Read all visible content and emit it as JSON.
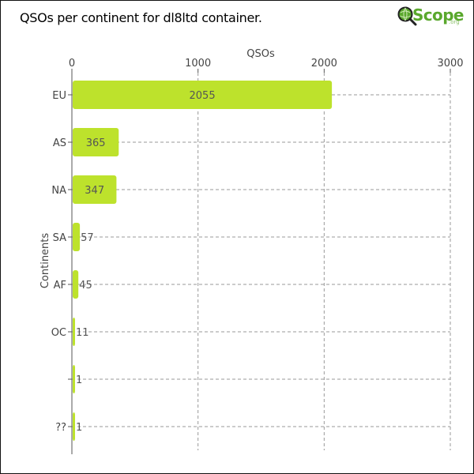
{
  "header": {
    "title": "QSOs per continent for dl8ltd container."
  },
  "logo": {
    "text": "Scope",
    "suffix": ".org",
    "icon": "magnifier-globe-icon",
    "color": "#5aa82d"
  },
  "chart_data": {
    "type": "bar",
    "orientation": "horizontal",
    "title": "QSOs per continent for dl8ltd container.",
    "xlabel": "QSOs",
    "ylabel": "Continents",
    "x_axis_position": "top",
    "xlim": [
      0,
      3000
    ],
    "xticks": [
      "0",
      "1000",
      "2000",
      "3000"
    ],
    "grid": true,
    "bar_color": "#bde22c",
    "categories": [
      "EU",
      "AS",
      "NA",
      "SA",
      "AF",
      "OC",
      "",
      "??"
    ],
    "values": [
      2055,
      365,
      347,
      57,
      45,
      11,
      1,
      1
    ],
    "value_labels": [
      "2055",
      "365",
      "347",
      "57",
      "45",
      "11",
      "1",
      "1"
    ]
  }
}
